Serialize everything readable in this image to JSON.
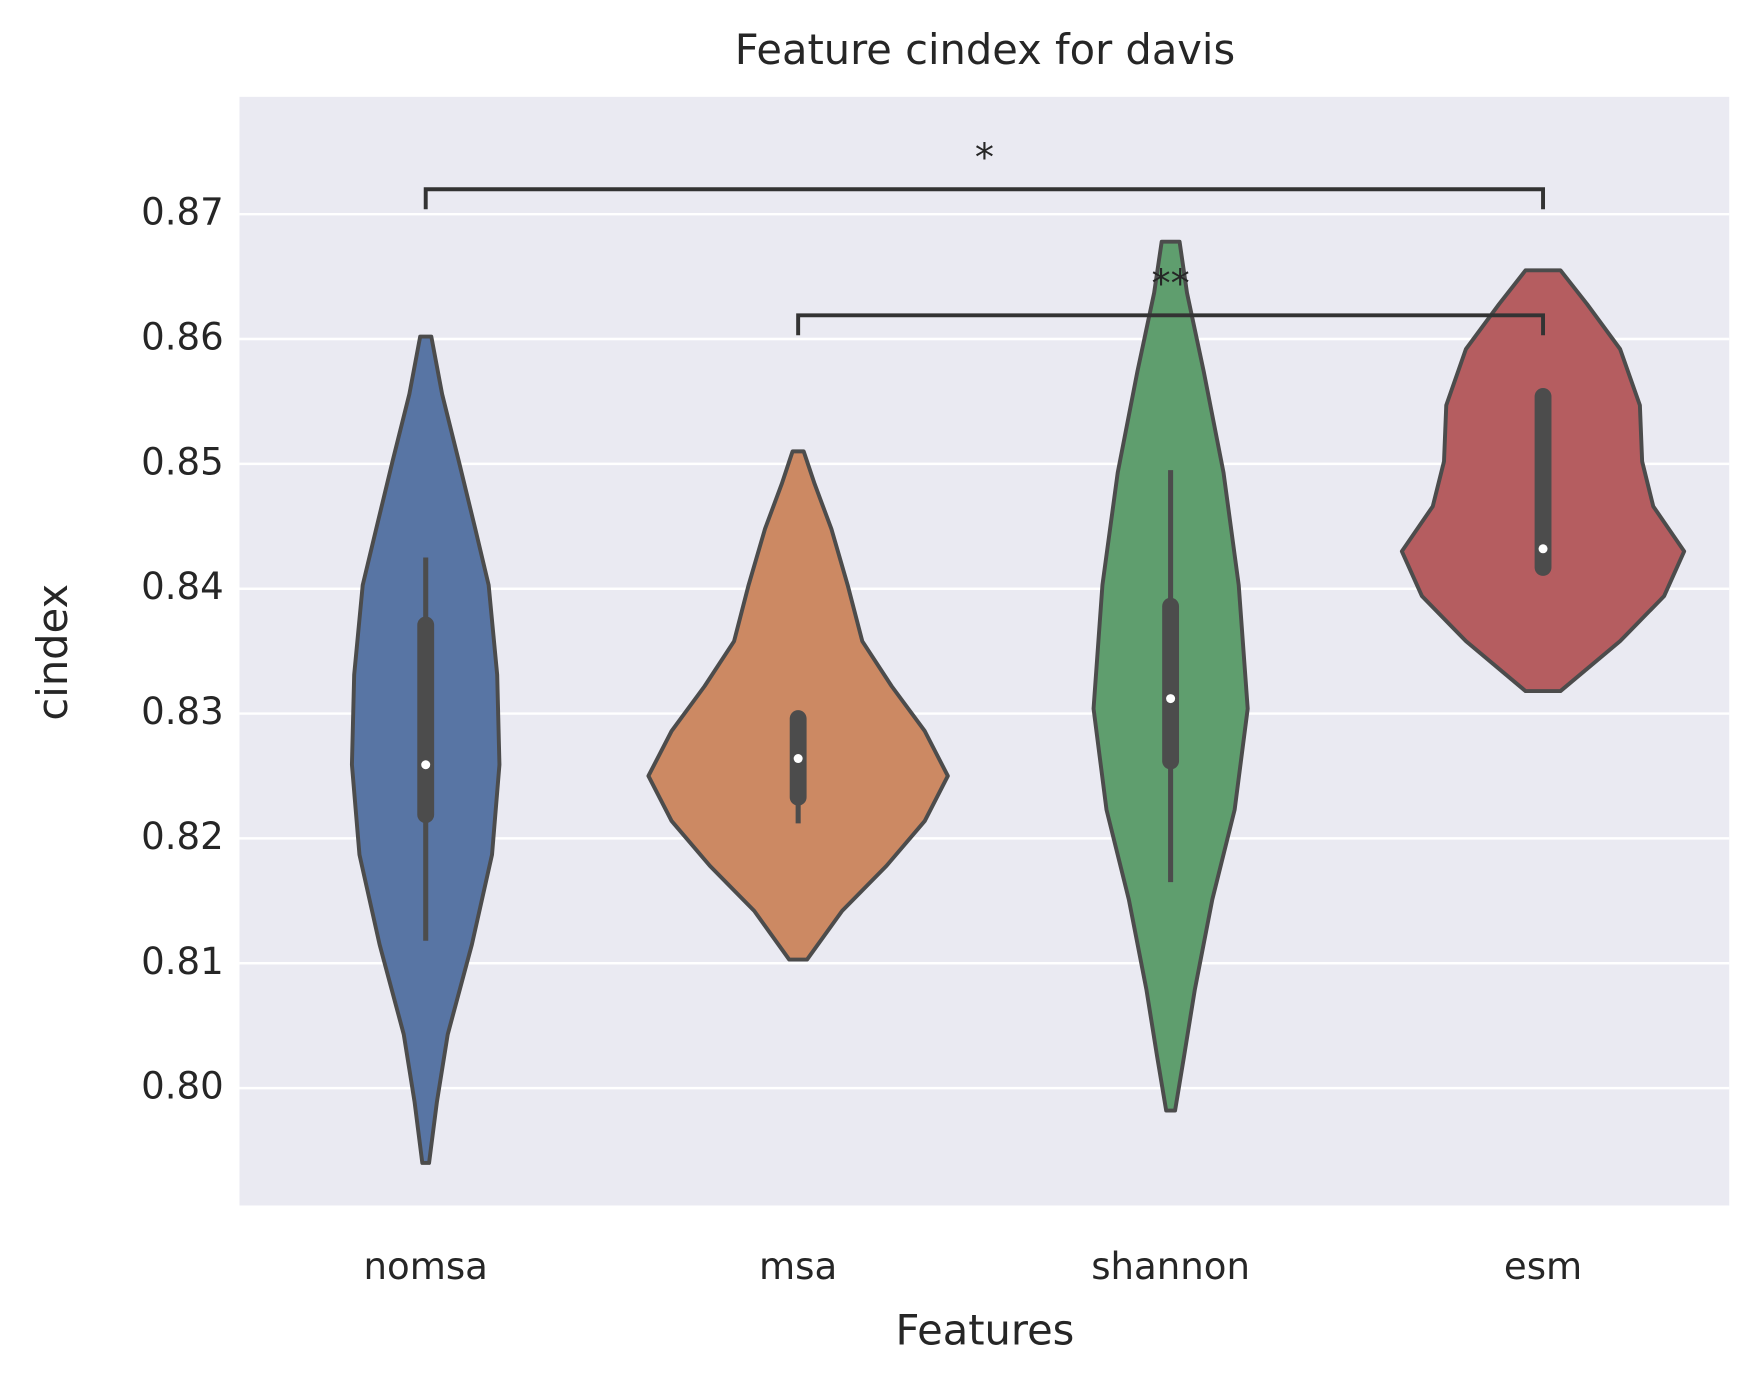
{
  "chart_data": {
    "type": "violin",
    "title": "Feature cindex for davis",
    "xlabel": "Features",
    "ylabel": "cindex",
    "categories": [
      "nomsa",
      "msa",
      "shannon",
      "esm"
    ],
    "ylim": [
      0.7906,
      0.8794
    ],
    "yticks": [
      {
        "value": 0.8,
        "label": "0.80"
      },
      0.81,
      0.82,
      0.83,
      0.84,
      0.85,
      0.86,
      0.87
    ],
    "grid": true,
    "background": "#eaeaf2",
    "line_color": "#4c4c4c",
    "series": [
      {
        "color": "#5875a4",
        "kde_values": [
          0.8602,
          0.8556,
          0.8502,
          0.8448,
          0.8403,
          0.8331,
          0.8259,
          0.8187,
          0.8115,
          0.8043,
          0.7989,
          0.794
        ],
        "kde_density": [
          0.015,
          0.044,
          0.089,
          0.133,
          0.169,
          0.192,
          0.198,
          0.178,
          0.124,
          0.059,
          0.03,
          0.009
        ],
        "whisker_low": 0.8118,
        "q1": 0.8219,
        "median": 0.8259,
        "q3": 0.8371,
        "whisker_high": 0.8425
      },
      {
        "color": "#cc8963",
        "kde_values": [
          0.851,
          0.8484,
          0.8448,
          0.8403,
          0.8358,
          0.8322,
          0.8286,
          0.825,
          0.8214,
          0.8178,
          0.8142,
          0.8103
        ],
        "kde_density": [
          0.015,
          0.044,
          0.089,
          0.133,
          0.172,
          0.251,
          0.34,
          0.402,
          0.34,
          0.237,
          0.118,
          0.024
        ],
        "whisker_low": 0.8212,
        "q1": 0.8233,
        "median": 0.8264,
        "q3": 0.8296,
        "whisker_high": 0.8297
      },
      {
        "color": "#5f9e6e",
        "kde_values": [
          0.8678,
          0.8637,
          0.8574,
          0.8493,
          0.8403,
          0.8304,
          0.8223,
          0.8151,
          0.8079,
          0.8025,
          0.7982
        ],
        "kde_density": [
          0.024,
          0.044,
          0.089,
          0.142,
          0.183,
          0.207,
          0.172,
          0.112,
          0.065,
          0.036,
          0.012
        ],
        "whisker_low": 0.8165,
        "q1": 0.8262,
        "median": 0.8312,
        "q3": 0.8386,
        "whisker_high": 0.8495
      },
      {
        "color": "#b55d60",
        "kde_values": [
          0.8655,
          0.8628,
          0.8592,
          0.8547,
          0.8502,
          0.8466,
          0.843,
          0.8394,
          0.8358,
          0.8318
        ],
        "kde_density": [
          0.047,
          0.118,
          0.207,
          0.26,
          0.266,
          0.296,
          0.379,
          0.325,
          0.207,
          0.047
        ],
        "whisker_low": 0.8417,
        "q1": 0.8417,
        "median": 0.8432,
        "q3": 0.8554,
        "whisker_high": 0.8554
      }
    ],
    "annotations": [
      {
        "text": "*",
        "from": 0,
        "to": 3,
        "y": 0.872,
        "tip": 0.8704
      },
      {
        "text": "**",
        "from": 1,
        "to": 3,
        "y": 0.8619,
        "tip": 0.8603
      }
    ]
  }
}
